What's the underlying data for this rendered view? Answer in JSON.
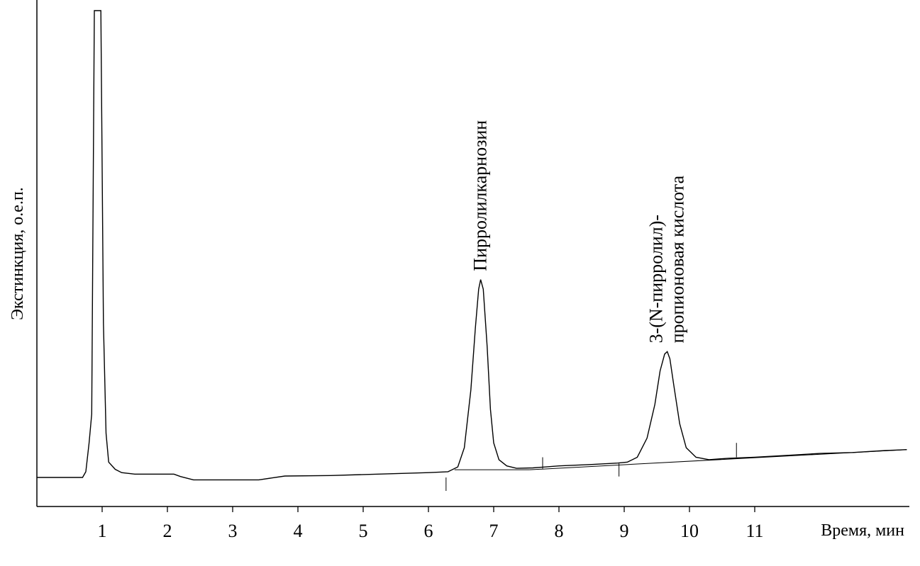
{
  "chart_data": {
    "type": "line",
    "title": "",
    "xlabel": "Время, мин",
    "ylabel": "Экстинкция, о.е.п.",
    "xlim": [
      0,
      13.33
    ],
    "ylim": [
      0,
      1
    ],
    "x_ticks": [
      "1",
      "2",
      "3",
      "4",
      "5",
      "6",
      "7",
      "8",
      "9",
      "10",
      "11"
    ],
    "grid": false,
    "legend": "none",
    "series": [
      {
        "points": [
          [
            0.0,
            0.028
          ],
          [
            0.7,
            0.028
          ],
          [
            0.75,
            0.04
          ],
          [
            0.8,
            0.1
          ],
          [
            0.84,
            0.16
          ],
          [
            0.88,
            1.0
          ],
          [
            0.98,
            1.0
          ],
          [
            1.02,
            0.35
          ],
          [
            1.06,
            0.12
          ],
          [
            1.1,
            0.06
          ],
          [
            1.2,
            0.045
          ],
          [
            1.3,
            0.038
          ],
          [
            1.5,
            0.035
          ],
          [
            2.0,
            0.035
          ],
          [
            2.1,
            0.035
          ],
          [
            2.2,
            0.03
          ],
          [
            2.4,
            0.023
          ],
          [
            3.0,
            0.023
          ],
          [
            3.4,
            0.023
          ],
          [
            3.6,
            0.027
          ],
          [
            3.8,
            0.031
          ],
          [
            4.5,
            0.032
          ],
          [
            5.0,
            0.034
          ],
          [
            5.5,
            0.036
          ],
          [
            6.0,
            0.038
          ],
          [
            6.3,
            0.04
          ],
          [
            6.45,
            0.05
          ],
          [
            6.55,
            0.09
          ],
          [
            6.65,
            0.21
          ],
          [
            6.72,
            0.34
          ],
          [
            6.77,
            0.42
          ],
          [
            6.8,
            0.44
          ],
          [
            6.84,
            0.42
          ],
          [
            6.9,
            0.3
          ],
          [
            6.95,
            0.17
          ],
          [
            7.0,
            0.1
          ],
          [
            7.08,
            0.065
          ],
          [
            7.2,
            0.052
          ],
          [
            7.35,
            0.047
          ],
          [
            7.6,
            0.048
          ],
          [
            8.0,
            0.052
          ],
          [
            8.5,
            0.055
          ],
          [
            8.9,
            0.058
          ],
          [
            9.05,
            0.06
          ],
          [
            9.2,
            0.07
          ],
          [
            9.35,
            0.11
          ],
          [
            9.47,
            0.18
          ],
          [
            9.55,
            0.25
          ],
          [
            9.62,
            0.285
          ],
          [
            9.66,
            0.29
          ],
          [
            9.7,
            0.275
          ],
          [
            9.76,
            0.22
          ],
          [
            9.85,
            0.14
          ],
          [
            9.95,
            0.09
          ],
          [
            10.1,
            0.07
          ],
          [
            10.3,
            0.065
          ],
          [
            10.6,
            0.068
          ],
          [
            11.0,
            0.07
          ],
          [
            11.5,
            0.074
          ],
          [
            12.0,
            0.078
          ],
          [
            12.5,
            0.08
          ],
          [
            13.0,
            0.084
          ],
          [
            13.33,
            0.086
          ]
        ]
      }
    ],
    "peak_labels": [
      {
        "lines": [
          "Пирролилкарнозин"
        ],
        "x": 6.8,
        "y": 0.44
      },
      {
        "lines": [
          "3-(N-пирролил)-",
          "пропионовая кислота"
        ],
        "x": 9.66,
        "y": 0.29
      }
    ],
    "baseline_segments": [
      [
        [
          6.4,
          0.044
        ],
        [
          7.55,
          0.044
        ]
      ],
      [
        [
          7.55,
          0.044
        ],
        [
          13.33,
          0.086
        ]
      ]
    ],
    "event_marks": [
      {
        "x": 6.27,
        "y0": 0.028,
        "y1": 0.0
      },
      {
        "x": 7.75,
        "y0": 0.046,
        "y1": 0.07
      },
      {
        "x": 8.92,
        "y0": 0.057,
        "y1": 0.03
      },
      {
        "x": 10.72,
        "y0": 0.07,
        "y1": 0.1
      }
    ]
  }
}
